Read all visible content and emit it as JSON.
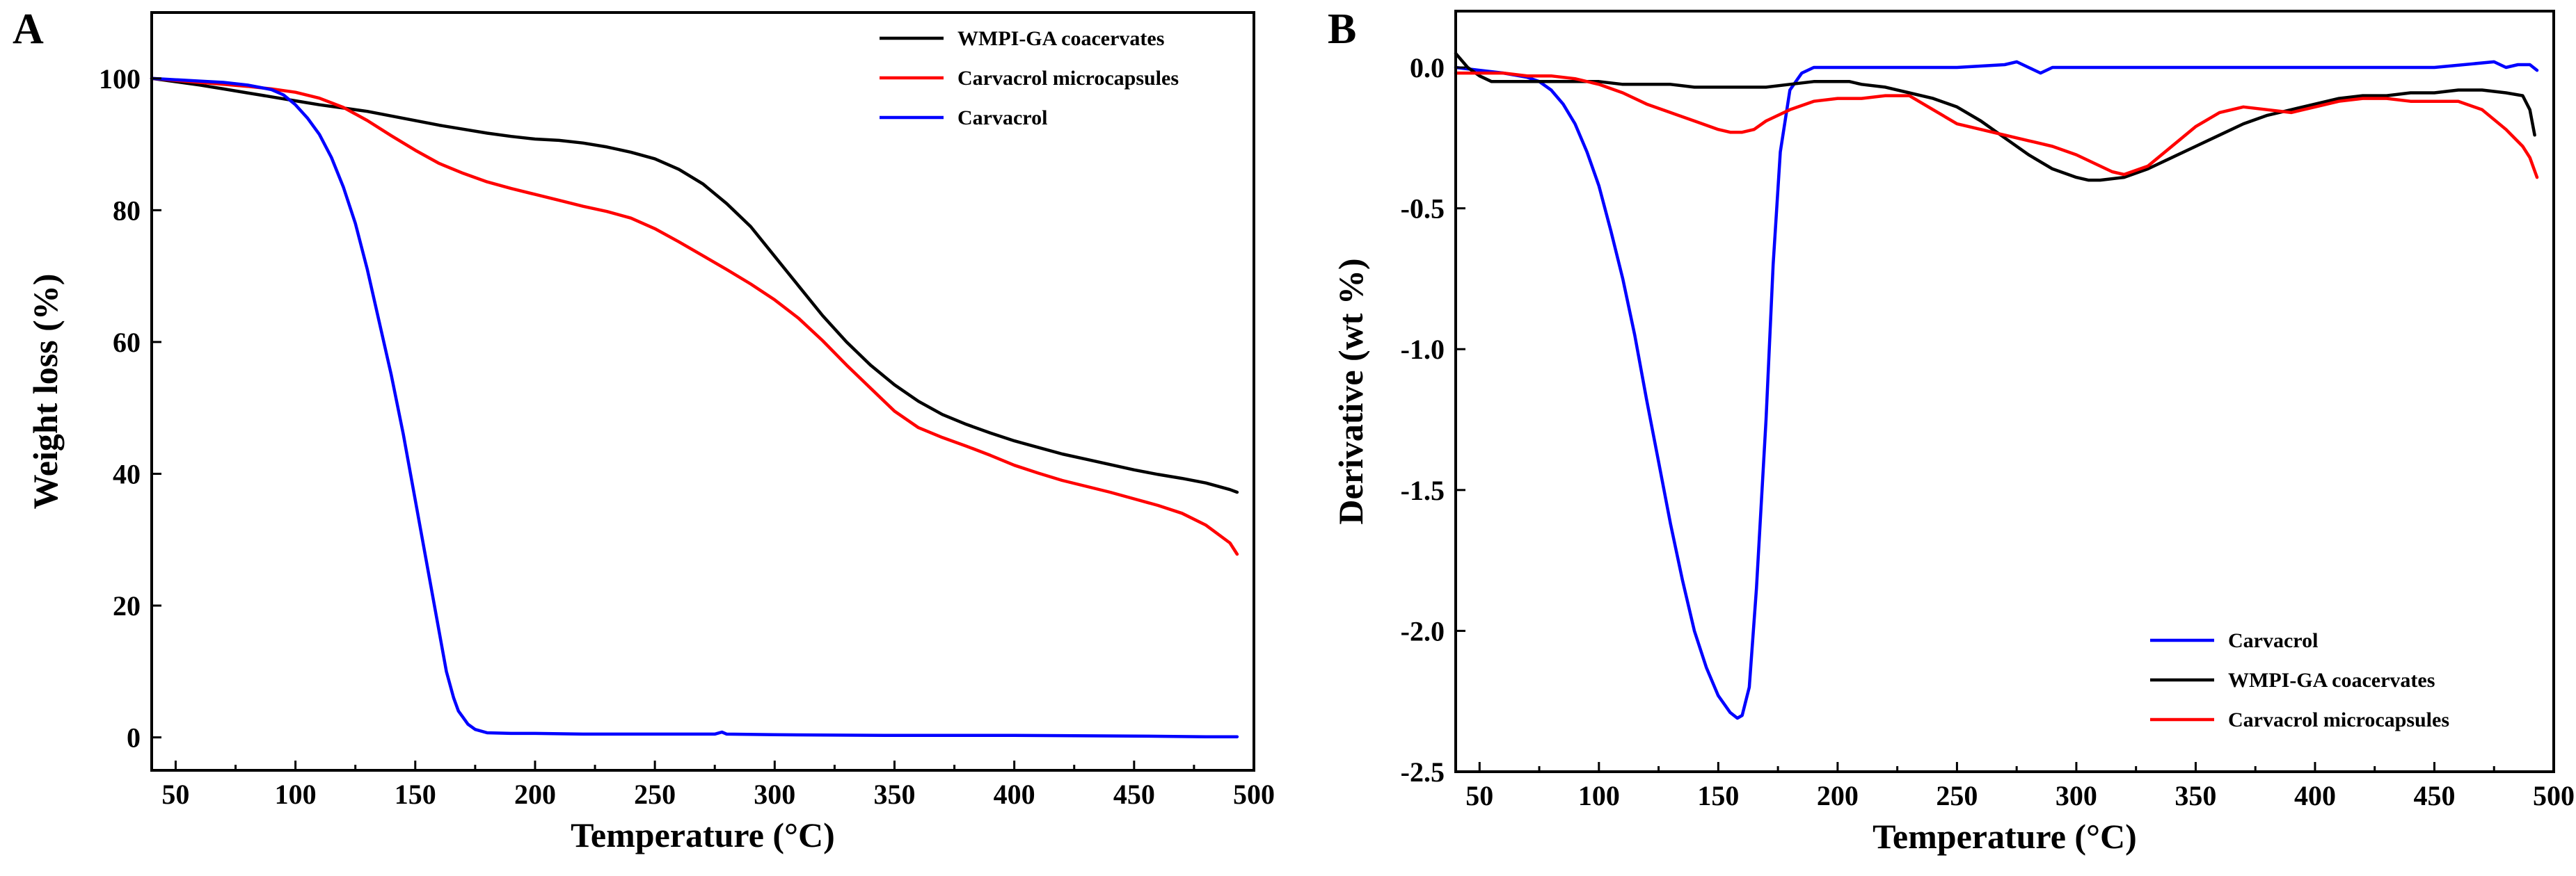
{
  "chart_data": [
    {
      "panel": "A",
      "type": "line",
      "title": "",
      "xlabel": "Temperature (°C)",
      "ylabel": "Weight loss (%)",
      "xlim": [
        40,
        500
      ],
      "ylim": [
        -5,
        110
      ],
      "xticks": [
        50,
        100,
        150,
        200,
        250,
        300,
        350,
        400,
        450,
        500
      ],
      "yticks": [
        0,
        20,
        40,
        60,
        80,
        100
      ],
      "legend_position": "top-right",
      "series": [
        {
          "name": "WMPI-GA coacervates",
          "color": "#000000",
          "x": [
            40,
            50,
            60,
            70,
            80,
            90,
            100,
            110,
            120,
            130,
            140,
            150,
            160,
            170,
            180,
            190,
            200,
            210,
            220,
            230,
            240,
            250,
            260,
            270,
            280,
            290,
            300,
            310,
            320,
            330,
            340,
            350,
            360,
            370,
            380,
            390,
            400,
            410,
            420,
            430,
            440,
            450,
            460,
            470,
            480,
            490,
            493
          ],
          "y": [
            100,
            99.5,
            99,
            98.4,
            97.8,
            97.2,
            96.6,
            96,
            95.5,
            95,
            94.3,
            93.6,
            92.9,
            92.3,
            91.7,
            91.2,
            90.8,
            90.6,
            90.2,
            89.6,
            88.8,
            87.8,
            86.2,
            84,
            81,
            77.5,
            73,
            68.5,
            64,
            60,
            56.5,
            53.5,
            51,
            49,
            47.5,
            46.2,
            45,
            44,
            43,
            42.2,
            41.4,
            40.6,
            39.9,
            39.3,
            38.6,
            37.6,
            37.2
          ]
        },
        {
          "name": "Carvacrol microcapsules",
          "color": "#ff0000",
          "x": [
            40,
            50,
            60,
            70,
            80,
            90,
            100,
            110,
            120,
            130,
            140,
            150,
            160,
            170,
            180,
            190,
            200,
            210,
            220,
            230,
            240,
            250,
            260,
            270,
            280,
            290,
            300,
            310,
            320,
            330,
            340,
            350,
            360,
            370,
            380,
            390,
            400,
            410,
            420,
            430,
            440,
            450,
            460,
            470,
            480,
            490,
            493
          ],
          "y": [
            100,
            99.7,
            99.4,
            99.1,
            98.8,
            98.4,
            97.9,
            97,
            95.6,
            93.6,
            91.3,
            89.1,
            87.1,
            85.6,
            84.3,
            83.3,
            82.4,
            81.5,
            80.6,
            79.8,
            78.8,
            77.2,
            75.2,
            73.1,
            71,
            68.8,
            66.4,
            63.6,
            60.2,
            56.5,
            53,
            49.5,
            47,
            45.5,
            44.2,
            42.8,
            41.3,
            40.1,
            39,
            38.1,
            37.2,
            36.2,
            35.2,
            34,
            32.2,
            29.5,
            27.8
          ]
        },
        {
          "name": "Carvacrol",
          "color": "#0000ff",
          "x": [
            40,
            50,
            60,
            70,
            80,
            90,
            95,
            100,
            105,
            110,
            115,
            120,
            125,
            130,
            135,
            140,
            145,
            150,
            155,
            160,
            163,
            166,
            168,
            170,
            172,
            175,
            180,
            190,
            200,
            220,
            250,
            275,
            278,
            280,
            300,
            350,
            400,
            450,
            480,
            493
          ],
          "y": [
            100,
            99.8,
            99.6,
            99.4,
            99,
            98.3,
            97.5,
            96,
            94,
            91.5,
            88,
            83.5,
            78,
            71,
            63,
            55,
            46,
            36,
            26,
            16,
            10,
            6,
            4,
            3,
            2,
            1.2,
            0.7,
            0.6,
            0.6,
            0.5,
            0.5,
            0.5,
            0.8,
            0.5,
            0.4,
            0.3,
            0.3,
            0.2,
            0.1,
            0.1
          ]
        }
      ]
    },
    {
      "panel": "B",
      "type": "line",
      "title": "",
      "xlabel": "Temperature (°C)",
      "ylabel": "Derivative (wt %)",
      "xlim": [
        40,
        500
      ],
      "ylim": [
        -2.5,
        0.2
      ],
      "xticks": [
        50,
        100,
        150,
        200,
        250,
        300,
        350,
        400,
        450,
        500
      ],
      "yticks": [
        0.0,
        -0.5,
        -1.0,
        -1.5,
        -2.0,
        -2.5
      ],
      "ytick_labels": [
        "0.0",
        "-0.5",
        "-1.0",
        "-1.5",
        "-2.0",
        "-2.5"
      ],
      "legend_position": "bottom-right",
      "series": [
        {
          "name": "Carvacrol",
          "color": "#0000ff",
          "x": [
            40,
            50,
            60,
            70,
            75,
            80,
            85,
            90,
            95,
            100,
            105,
            110,
            115,
            120,
            125,
            130,
            135,
            140,
            145,
            150,
            155,
            158,
            160,
            163,
            166,
            170,
            173,
            176,
            180,
            185,
            190,
            200,
            250,
            270,
            275,
            280,
            285,
            290,
            300,
            350,
            400,
            450,
            475,
            480,
            485,
            490,
            493
          ],
          "y": [
            0,
            -0.01,
            -0.02,
            -0.035,
            -0.05,
            -0.08,
            -0.13,
            -0.2,
            -0.3,
            -0.42,
            -0.58,
            -0.75,
            -0.95,
            -1.18,
            -1.4,
            -1.62,
            -1.82,
            -2.0,
            -2.13,
            -2.23,
            -2.29,
            -2.31,
            -2.3,
            -2.2,
            -1.85,
            -1.25,
            -0.7,
            -0.3,
            -0.08,
            -0.02,
            0,
            0,
            0,
            0.01,
            0.02,
            0,
            -0.02,
            0,
            0,
            0,
            0,
            0,
            0.02,
            0,
            0.01,
            0.01,
            -0.01
          ]
        },
        {
          "name": "WMPI-GA coacervates",
          "color": "#000000",
          "x": [
            40,
            45,
            50,
            55,
            60,
            70,
            80,
            90,
            100,
            110,
            120,
            130,
            140,
            150,
            160,
            170,
            180,
            190,
            200,
            205,
            210,
            220,
            230,
            240,
            250,
            260,
            270,
            280,
            290,
            300,
            305,
            310,
            320,
            330,
            340,
            350,
            360,
            370,
            380,
            390,
            400,
            410,
            420,
            430,
            440,
            450,
            460,
            470,
            480,
            487,
            490,
            492
          ],
          "y": [
            0.05,
            0,
            -0.03,
            -0.05,
            -0.05,
            -0.05,
            -0.05,
            -0.05,
            -0.05,
            -0.06,
            -0.06,
            -0.06,
            -0.07,
            -0.07,
            -0.07,
            -0.07,
            -0.06,
            -0.05,
            -0.05,
            -0.05,
            -0.06,
            -0.07,
            -0.09,
            -0.11,
            -0.14,
            -0.19,
            -0.25,
            -0.31,
            -0.36,
            -0.39,
            -0.4,
            -0.4,
            -0.39,
            -0.36,
            -0.32,
            -0.28,
            -0.24,
            -0.2,
            -0.17,
            -0.15,
            -0.13,
            -0.11,
            -0.1,
            -0.1,
            -0.09,
            -0.09,
            -0.08,
            -0.08,
            -0.09,
            -0.1,
            -0.15,
            -0.24
          ]
        },
        {
          "name": "Carvacrol microcapsules",
          "color": "#ff0000",
          "x": [
            40,
            50,
            60,
            70,
            80,
            90,
            100,
            110,
            120,
            130,
            140,
            150,
            155,
            160,
            165,
            170,
            180,
            190,
            200,
            210,
            220,
            230,
            240,
            250,
            260,
            270,
            280,
            290,
            300,
            310,
            315,
            320,
            330,
            340,
            350,
            360,
            370,
            380,
            390,
            400,
            410,
            420,
            430,
            440,
            450,
            460,
            470,
            480,
            487,
            490,
            493
          ],
          "y": [
            -0.02,
            -0.02,
            -0.02,
            -0.03,
            -0.03,
            -0.04,
            -0.06,
            -0.09,
            -0.13,
            -0.16,
            -0.19,
            -0.22,
            -0.23,
            -0.23,
            -0.22,
            -0.19,
            -0.15,
            -0.12,
            -0.11,
            -0.11,
            -0.1,
            -0.1,
            -0.15,
            -0.2,
            -0.22,
            -0.24,
            -0.26,
            -0.28,
            -0.31,
            -0.35,
            -0.37,
            -0.38,
            -0.35,
            -0.28,
            -0.21,
            -0.16,
            -0.14,
            -0.15,
            -0.16,
            -0.14,
            -0.12,
            -0.11,
            -0.11,
            -0.12,
            -0.12,
            -0.12,
            -0.15,
            -0.22,
            -0.28,
            -0.32,
            -0.39
          ]
        }
      ]
    }
  ]
}
